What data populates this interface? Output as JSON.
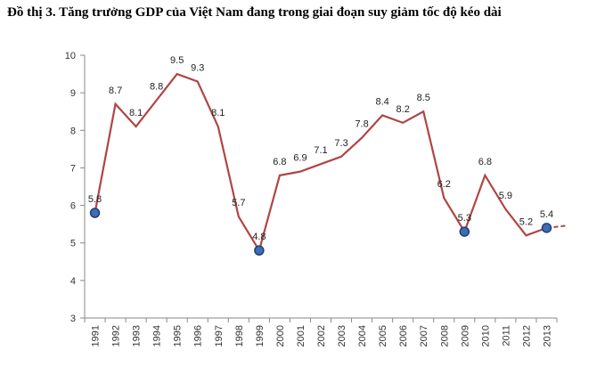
{
  "title": "Đồ thị 3. Tăng trưởng GDP của Việt Nam đang trong giai đoạn suy giảm tốc độ kéo dài",
  "colors": {
    "line": "#B04545",
    "marker": "#3E6DB5",
    "marker_edge": "#1F3F73",
    "axis": "#888888",
    "grid": "#DDDDDD"
  },
  "chart_data": {
    "type": "line",
    "title": "Đồ thị 3. Tăng trưởng GDP của Việt Nam đang trong giai đoạn suy giảm tốc độ kéo dài",
    "xlabel": "",
    "ylabel": "",
    "ylim": [
      3,
      10
    ],
    "yticks": [
      "3",
      "4",
      "5",
      "6",
      "7",
      "8",
      "9",
      "10"
    ],
    "grid": false,
    "legend": "none",
    "categories": [
      "1991",
      "1992",
      "1993",
      "1994",
      "1995",
      "1996",
      "1997",
      "1998",
      "1999",
      "2000",
      "2001",
      "2002",
      "2003",
      "2004",
      "2005",
      "2006",
      "2007",
      "2008",
      "2009",
      "2010",
      "2011",
      "2012",
      "2013"
    ],
    "series": [
      {
        "values": [
          5.8,
          8.7,
          8.1,
          8.8,
          9.5,
          9.3,
          8.1,
          5.7,
          4.8,
          6.8,
          6.9,
          7.1,
          7.3,
          7.8,
          8.4,
          8.2,
          8.5,
          6.2,
          5.3,
          6.8,
          5.9,
          5.2,
          5.4
        ],
        "data_labels": [
          "5.8",
          "8.7",
          "8.1",
          "8.8",
          "9.5",
          "9.3",
          "8.1",
          "5.7",
          "4.8",
          "6.8",
          "6.9",
          "7.1",
          "7.3",
          "7.8",
          "8.4",
          "8.2",
          "8.5",
          "6.2",
          "5.3",
          "6.8",
          "5.9",
          "5.2",
          "5.4"
        ],
        "highlighted_points": [
          "1991",
          "1999",
          "2009",
          "2013"
        ],
        "trend_extension": "dashed"
      }
    ]
  }
}
